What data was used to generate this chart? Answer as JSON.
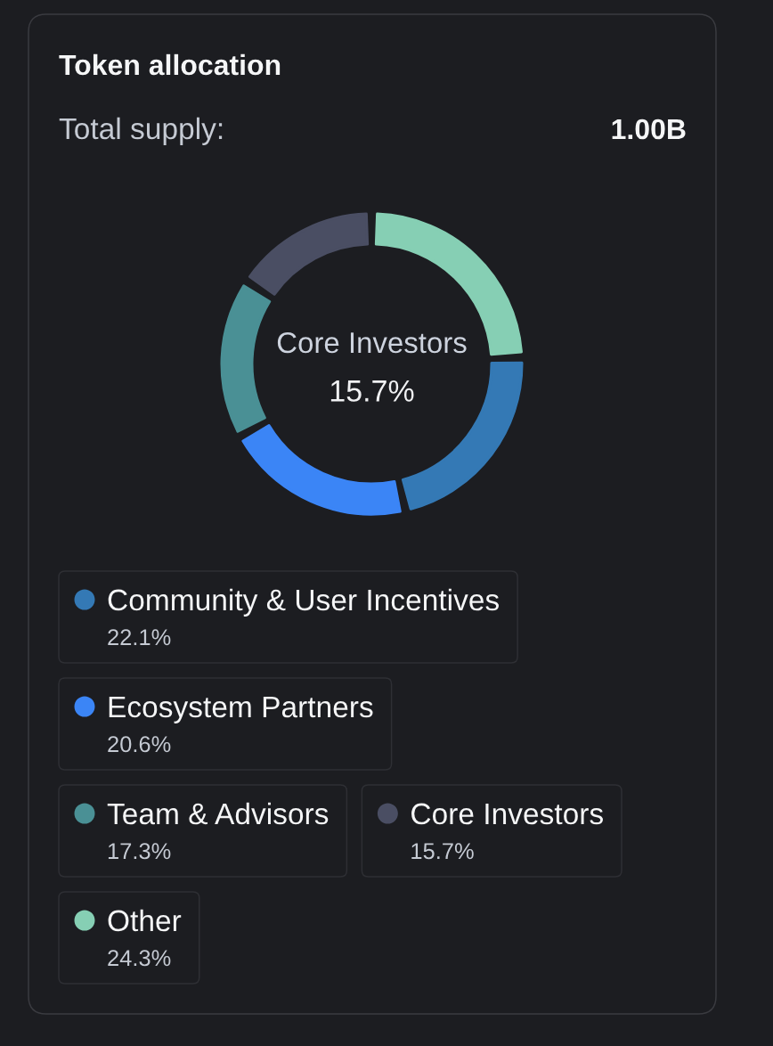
{
  "chart_data": {
    "type": "donut",
    "title": "Token allocation",
    "subtitle": "Total supply:",
    "annotations": [
      "1.00B",
      "Core Investors",
      "15.7%"
    ],
    "categories": [
      "Community & User Incentives",
      "Ecosystem Partners",
      "Team & Advisors",
      "Core Investors",
      "Other"
    ],
    "values": [
      22.1,
      20.6,
      17.3,
      15.7,
      24.3
    ],
    "colors": [
      "#3479b5",
      "#3b85f6",
      "#4a9095",
      "#4a4e63",
      "#86cfb4"
    ],
    "value_labels": [
      "22.1%",
      "20.6%",
      "17.3%",
      "15.7%",
      "24.3%"
    ],
    "legend": "bottom"
  }
}
